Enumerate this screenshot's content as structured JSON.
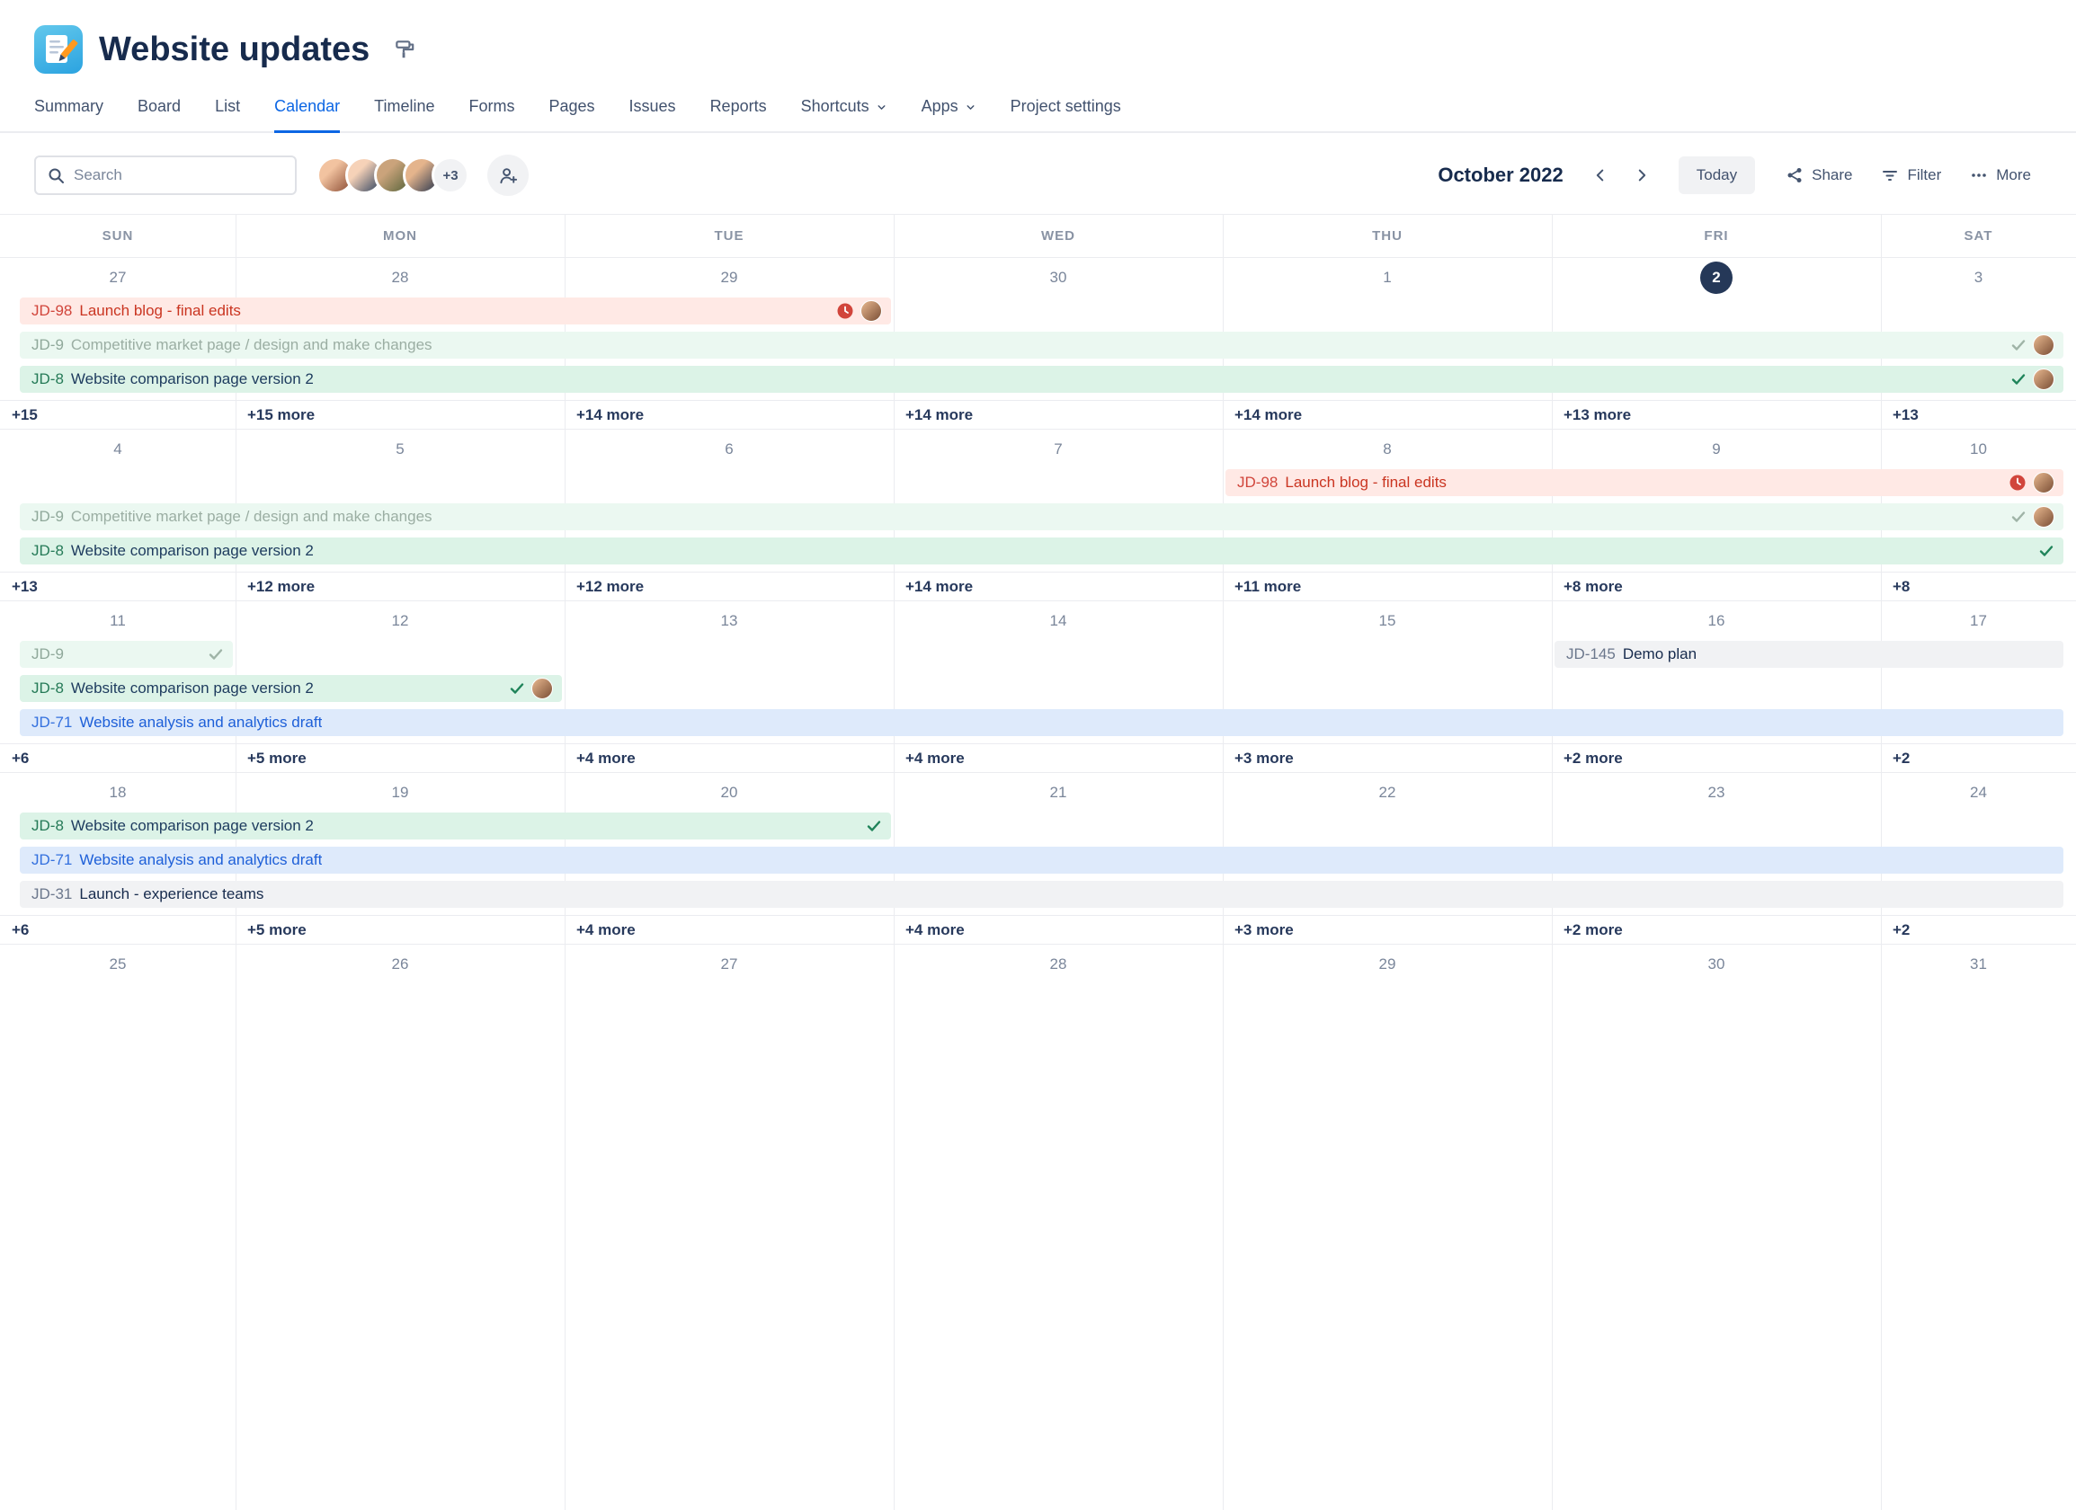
{
  "header": {
    "title": "Website updates"
  },
  "tabs": {
    "items": [
      {
        "label": "Summary"
      },
      {
        "label": "Board"
      },
      {
        "label": "List"
      },
      {
        "label": "Calendar",
        "active": true
      },
      {
        "label": "Timeline"
      },
      {
        "label": "Forms"
      },
      {
        "label": "Pages"
      },
      {
        "label": "Issues"
      },
      {
        "label": "Reports"
      },
      {
        "label": "Shortcuts",
        "chevron": true
      },
      {
        "label": "Apps",
        "chevron": true
      },
      {
        "label": "Project settings"
      }
    ]
  },
  "toolbar": {
    "search_placeholder": "Search",
    "avatars": [
      {
        "colors": [
          "#8A4B33",
          "#F2C3A0"
        ]
      },
      {
        "colors": [
          "#30435F",
          "#F6D2B8"
        ]
      },
      {
        "colors": [
          "#57633A",
          "#CAA37B"
        ]
      },
      {
        "colors": [
          "#27354D",
          "#E4B48C"
        ]
      }
    ],
    "avatar_overflow": "+3",
    "month_label": "October 2022",
    "today_label": "Today",
    "share_label": "Share",
    "filter_label": "Filter",
    "more_label": "More"
  },
  "calendar": {
    "day_headers": [
      "SUN",
      "MON",
      "TUE",
      "WED",
      "THU",
      "FRI",
      "SAT"
    ],
    "colors": {
      "accent": "#0C66E4",
      "today_bg": "#253858",
      "event_red_bg": "#FFE9E5",
      "event_red_text": "#CA3521",
      "event_green_bg": "#DCF3E7",
      "event_green_muted_bg": "#EBF8F1",
      "event_blue_bg": "#DEEAFB",
      "event_gray_bg": "#F1F2F4",
      "grid_line": "#EBECF0"
    },
    "weeks": [
      {
        "dates": [
          {
            "label": "27"
          },
          {
            "label": "28"
          },
          {
            "label": "29"
          },
          {
            "label": "30"
          },
          {
            "label": "1"
          },
          {
            "label": "2",
            "today": true
          },
          {
            "label": "3"
          }
        ],
        "event_rows": [
          [
            {
              "key": "JD-98",
              "title": "Launch blog - final edits",
              "variant": "red",
              "start": 1,
              "end": 3,
              "icons": [
                "clock",
                "avatar"
              ]
            }
          ],
          [
            {
              "key": "JD-9",
              "title": "Competitive market page / design and make changes",
              "variant": "green-muted",
              "start": 1,
              "end": 7,
              "icons": [
                "check-muted",
                "avatar"
              ]
            }
          ],
          [
            {
              "key": "JD-8",
              "title": "Website comparison page version 2",
              "variant": "green",
              "start": 1,
              "end": 7,
              "icons": [
                "check",
                "avatar"
              ]
            }
          ]
        ],
        "more": [
          "+15",
          "+15 more",
          "+14 more",
          "+14 more",
          "+14 more",
          "+13 more",
          "+13"
        ]
      },
      {
        "dates": [
          {
            "label": "4"
          },
          {
            "label": "5"
          },
          {
            "label": "6"
          },
          {
            "label": "7"
          },
          {
            "label": "8"
          },
          {
            "label": "9"
          },
          {
            "label": "10"
          }
        ],
        "event_rows": [
          [
            {
              "key": "JD-98",
              "title": "Launch blog - final edits",
              "variant": "red",
              "start": 5,
              "end": 7,
              "icons": [
                "clock",
                "avatar"
              ]
            }
          ],
          [
            {
              "key": "JD-9",
              "title": "Competitive market page / design and make changes",
              "variant": "green-muted",
              "start": 1,
              "end": 7,
              "icons": [
                "check-muted",
                "avatar"
              ]
            }
          ],
          [
            {
              "key": "JD-8",
              "title": "Website comparison page version 2",
              "variant": "green",
              "start": 1,
              "end": 7,
              "icons": [
                "check"
              ]
            }
          ]
        ],
        "more": [
          "+13",
          "+12 more",
          "+12 more",
          "+14 more",
          "+11 more",
          "+8 more",
          "+8"
        ]
      },
      {
        "dates": [
          {
            "label": "11"
          },
          {
            "label": "12"
          },
          {
            "label": "13"
          },
          {
            "label": "14"
          },
          {
            "label": "15"
          },
          {
            "label": "16"
          },
          {
            "label": "17"
          }
        ],
        "event_rows": [
          [
            {
              "key": "JD-9",
              "title": "",
              "variant": "green-muted",
              "start": 1,
              "end": 1,
              "icons": [
                "check-muted"
              ]
            },
            {
              "key": "JD-145",
              "title": "Demo plan",
              "variant": "gray",
              "start": 6,
              "end": 7,
              "icons": []
            }
          ],
          [
            {
              "key": "JD-8",
              "title": "Website comparison page version 2",
              "variant": "green",
              "start": 1,
              "end": 2,
              "icons": [
                "check",
                "avatar"
              ]
            }
          ],
          [
            {
              "key": "JD-71",
              "title": "Website analysis and analytics draft",
              "variant": "blue",
              "start": 1,
              "end": 7,
              "icons": []
            }
          ]
        ],
        "more": [
          "+6",
          "+5 more",
          "+4 more",
          "+4 more",
          "+3 more",
          "+2 more",
          "+2"
        ]
      },
      {
        "dates": [
          {
            "label": "18"
          },
          {
            "label": "19"
          },
          {
            "label": "20"
          },
          {
            "label": "21"
          },
          {
            "label": "22"
          },
          {
            "label": "23"
          },
          {
            "label": "24"
          }
        ],
        "event_rows": [
          [
            {
              "key": "JD-8",
              "title": "Website comparison page version 2",
              "variant": "green",
              "start": 1,
              "end": 3,
              "icons": [
                "check"
              ]
            }
          ],
          [
            {
              "key": "JD-71",
              "title": "Website analysis and analytics draft",
              "variant": "blue",
              "start": 1,
              "end": 7,
              "icons": []
            }
          ],
          [
            {
              "key": "JD-31",
              "title": "Launch - experience teams",
              "variant": "gray",
              "start": 1,
              "end": 7,
              "icons": []
            }
          ]
        ],
        "more": [
          "+6",
          "+5 more",
          "+4 more",
          "+4 more",
          "+3 more",
          "+2 more",
          "+2"
        ]
      },
      {
        "dates": [
          {
            "label": "25"
          },
          {
            "label": "26"
          },
          {
            "label": "27"
          },
          {
            "label": "28"
          },
          {
            "label": "29"
          },
          {
            "label": "30"
          },
          {
            "label": "31"
          }
        ],
        "event_rows": [],
        "more": null
      }
    ]
  }
}
